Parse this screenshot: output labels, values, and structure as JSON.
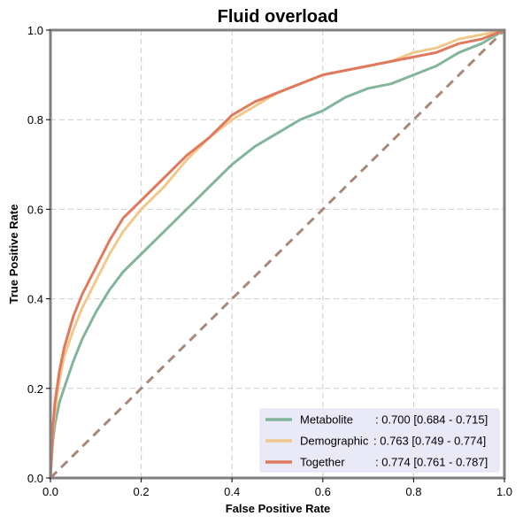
{
  "chart_data": {
    "type": "line",
    "title": "Fluid overload",
    "xlabel": "False Positive Rate",
    "ylabel": "True Positive Rate",
    "xlim": [
      0,
      1
    ],
    "ylim": [
      0,
      1
    ],
    "xticks": [
      "0.0",
      "0.2",
      "0.4",
      "0.6",
      "0.8",
      "1.0"
    ],
    "yticks": [
      "0.0",
      "0.2",
      "0.4",
      "0.6",
      "0.8",
      "1.0"
    ],
    "grid": true,
    "legend_position": "lower-right",
    "series": [
      {
        "name": "Metabolite",
        "legend_prefix": "Metabolite     ",
        "legend_value": ": 0.700 [0.684 - 0.715]",
        "color": "#82b59a",
        "x": [
          0,
          0.005,
          0.01,
          0.02,
          0.03,
          0.05,
          0.07,
          0.1,
          0.13,
          0.16,
          0.2,
          0.25,
          0.3,
          0.35,
          0.4,
          0.45,
          0.5,
          0.55,
          0.6,
          0.65,
          0.7,
          0.75,
          0.8,
          0.85,
          0.9,
          0.95,
          1
        ],
        "y": [
          0,
          0.08,
          0.12,
          0.17,
          0.2,
          0.26,
          0.31,
          0.37,
          0.42,
          0.46,
          0.5,
          0.55,
          0.6,
          0.65,
          0.7,
          0.74,
          0.77,
          0.8,
          0.82,
          0.85,
          0.87,
          0.88,
          0.9,
          0.92,
          0.95,
          0.97,
          1
        ]
      },
      {
        "name": "Demographic",
        "legend_prefix": "Demographic",
        "legend_value": ": 0.763 [0.749 - 0.774]",
        "color": "#f0c98a",
        "x": [
          0,
          0.005,
          0.01,
          0.02,
          0.03,
          0.05,
          0.07,
          0.1,
          0.13,
          0.16,
          0.2,
          0.25,
          0.3,
          0.35,
          0.4,
          0.45,
          0.5,
          0.55,
          0.6,
          0.65,
          0.7,
          0.75,
          0.8,
          0.85,
          0.9,
          0.95,
          1
        ],
        "y": [
          0,
          0.1,
          0.15,
          0.22,
          0.27,
          0.33,
          0.38,
          0.44,
          0.5,
          0.55,
          0.6,
          0.65,
          0.71,
          0.76,
          0.8,
          0.83,
          0.86,
          0.88,
          0.9,
          0.91,
          0.92,
          0.93,
          0.95,
          0.96,
          0.98,
          0.99,
          1
        ]
      },
      {
        "name": "Together",
        "legend_prefix": "Together       ",
        "legend_value": ": 0.774 [0.761 - 0.787]",
        "color": "#e07a5f",
        "x": [
          0,
          0.005,
          0.01,
          0.02,
          0.03,
          0.05,
          0.07,
          0.1,
          0.13,
          0.16,
          0.2,
          0.25,
          0.3,
          0.35,
          0.4,
          0.45,
          0.5,
          0.55,
          0.6,
          0.65,
          0.7,
          0.75,
          0.8,
          0.85,
          0.9,
          0.95,
          1
        ],
        "y": [
          0,
          0.11,
          0.17,
          0.24,
          0.29,
          0.36,
          0.41,
          0.47,
          0.53,
          0.58,
          0.62,
          0.67,
          0.72,
          0.76,
          0.81,
          0.84,
          0.86,
          0.88,
          0.9,
          0.91,
          0.92,
          0.93,
          0.94,
          0.95,
          0.97,
          0.98,
          1
        ]
      },
      {
        "name": "",
        "role": "chance-diagonal",
        "color": "#a88878",
        "dashed": true,
        "x": [
          0,
          1
        ],
        "y": [
          0,
          1
        ]
      }
    ]
  }
}
